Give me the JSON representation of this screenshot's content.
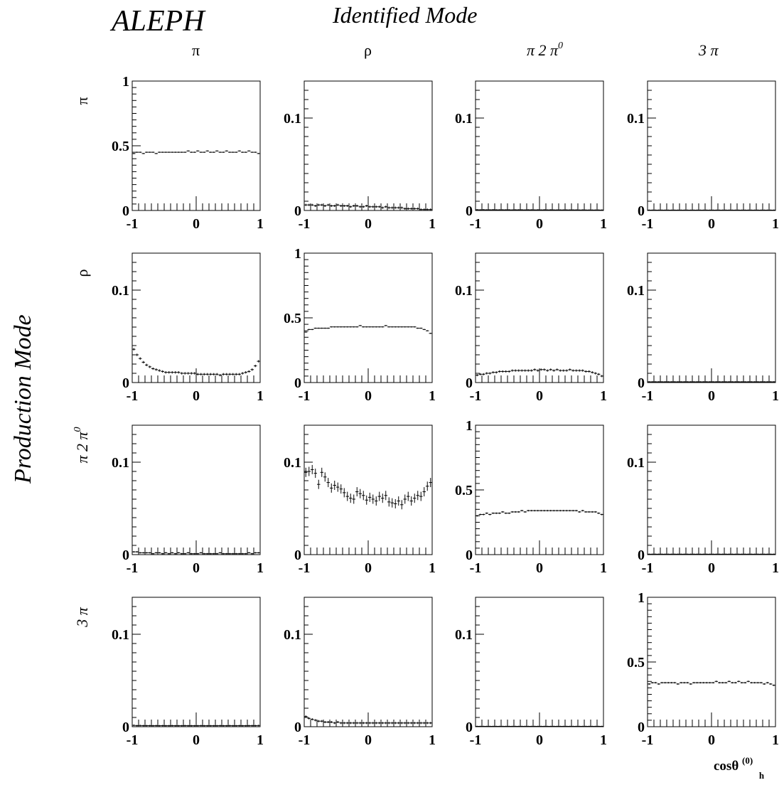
{
  "figure": {
    "experiment": "ALEPH",
    "identified_title": "Identified Mode",
    "production_title": "Production Mode",
    "x_axis_label_main": "cosθ",
    "x_axis_label_sup": "(0)",
    "x_axis_label_sub": "h"
  },
  "modes": [
    {
      "id": "pi",
      "base": "π",
      "sup": ""
    },
    {
      "id": "rho",
      "base": "ρ",
      "sup": ""
    },
    {
      "id": "pi2pi0",
      "base": "π 2 π",
      "sup": "0"
    },
    {
      "id": "3pi",
      "base": "3 π",
      "sup": ""
    }
  ],
  "chart_data": {
    "type": "scatter",
    "description_of_axes": "4x4 grid; rows = production mode, columns = identified mode",
    "x": [
      -0.975,
      -0.925,
      -0.875,
      -0.825,
      -0.775,
      -0.725,
      -0.675,
      -0.625,
      -0.575,
      -0.525,
      -0.475,
      -0.425,
      -0.375,
      -0.325,
      -0.275,
      -0.225,
      -0.175,
      -0.125,
      -0.075,
      -0.025,
      0.025,
      0.075,
      0.125,
      0.175,
      0.225,
      0.275,
      0.325,
      0.375,
      0.425,
      0.475,
      0.525,
      0.575,
      0.625,
      0.675,
      0.725,
      0.775,
      0.825,
      0.875,
      0.925,
      0.975
    ],
    "xlim": [
      -1,
      1
    ],
    "x_ticks": [
      "-1",
      "0",
      "1"
    ],
    "panels": [
      {
        "row": "π",
        "col": "π",
        "ylim": [
          0,
          1
        ],
        "y_ticks": [
          "0",
          "0.5",
          "1"
        ],
        "error": 0.004,
        "y": [
          0.44,
          0.45,
          0.45,
          0.44,
          0.45,
          0.45,
          0.45,
          0.44,
          0.45,
          0.45,
          0.45,
          0.45,
          0.45,
          0.45,
          0.45,
          0.45,
          0.45,
          0.46,
          0.45,
          0.45,
          0.46,
          0.45,
          0.45,
          0.46,
          0.45,
          0.45,
          0.46,
          0.45,
          0.45,
          0.46,
          0.45,
          0.45,
          0.45,
          0.46,
          0.45,
          0.45,
          0.46,
          0.45,
          0.45,
          0.44
        ]
      },
      {
        "row": "π",
        "col": "ρ",
        "ylim": [
          0,
          0.14
        ],
        "y_ticks": [
          "0",
          "0.1"
        ],
        "error": 0.0012,
        "y": [
          0.006,
          0.006,
          0.006,
          0.005,
          0.006,
          0.006,
          0.005,
          0.006,
          0.005,
          0.005,
          0.006,
          0.005,
          0.005,
          0.005,
          0.004,
          0.005,
          0.005,
          0.004,
          0.004,
          0.005,
          0.004,
          0.004,
          0.004,
          0.004,
          0.003,
          0.004,
          0.003,
          0.003,
          0.003,
          0.003,
          0.003,
          0.002,
          0.002,
          0.002,
          0.002,
          0.002,
          0.001,
          0.001,
          0.001,
          0.001
        ]
      },
      {
        "row": "π",
        "col": "π 2 π0",
        "ylim": [
          0,
          0.14
        ],
        "y_ticks": [
          "0",
          "0.1"
        ],
        "error": 0.0004,
        "y": [
          0.0008,
          0.0007,
          0.0008,
          0.0007,
          0.0007,
          0.0008,
          0.0007,
          0.0007,
          0.0007,
          0.0007,
          0.0007,
          0.0006,
          0.0007,
          0.0007,
          0.0007,
          0.0006,
          0.0007,
          0.0007,
          0.0006,
          0.0007,
          0.0006,
          0.0007,
          0.0006,
          0.0007,
          0.0006,
          0.0006,
          0.0006,
          0.0006,
          0.0006,
          0.0006,
          0.0006,
          0.0006,
          0.0005,
          0.0006,
          0.0005,
          0.0005,
          0.0005,
          0.0005,
          0.0005,
          0.0005
        ]
      },
      {
        "row": "π",
        "col": "3 π",
        "ylim": [
          0,
          0.14
        ],
        "y_ticks": [
          "0",
          "0.1"
        ],
        "error": 0.0002,
        "y": [
          0.0004,
          0.0004,
          0.0004,
          0.0004,
          0.0004,
          0.0004,
          0.0004,
          0.0004,
          0.0004,
          0.0004,
          0.0004,
          0.0004,
          0.0004,
          0.0004,
          0.0004,
          0.0004,
          0.0004,
          0.0004,
          0.0004,
          0.0004,
          0.0004,
          0.0004,
          0.0004,
          0.0004,
          0.0004,
          0.0004,
          0.0004,
          0.0004,
          0.0004,
          0.0004,
          0.0004,
          0.0004,
          0.0004,
          0.0004,
          0.0004,
          0.0004,
          0.0004,
          0.0004,
          0.0004,
          0.0004
        ]
      },
      {
        "row": "ρ",
        "col": "π",
        "ylim": [
          0,
          0.14
        ],
        "y_ticks": [
          "0",
          "0.1"
        ],
        "error": 0.0013,
        "y": [
          0.036,
          0.03,
          0.026,
          0.022,
          0.019,
          0.017,
          0.015,
          0.014,
          0.013,
          0.012,
          0.011,
          0.011,
          0.011,
          0.011,
          0.011,
          0.01,
          0.01,
          0.01,
          0.01,
          0.01,
          0.009,
          0.009,
          0.009,
          0.009,
          0.009,
          0.009,
          0.009,
          0.008,
          0.009,
          0.009,
          0.009,
          0.009,
          0.009,
          0.009,
          0.01,
          0.011,
          0.012,
          0.014,
          0.018,
          0.023
        ]
      },
      {
        "row": "ρ",
        "col": "ρ",
        "ylim": [
          0,
          1
        ],
        "y_ticks": [
          "0",
          "0.5",
          "1"
        ],
        "error": 0.004,
        "y": [
          0.39,
          0.41,
          0.41,
          0.42,
          0.42,
          0.42,
          0.42,
          0.42,
          0.43,
          0.43,
          0.43,
          0.43,
          0.43,
          0.43,
          0.43,
          0.43,
          0.43,
          0.44,
          0.43,
          0.43,
          0.43,
          0.43,
          0.43,
          0.43,
          0.43,
          0.44,
          0.43,
          0.43,
          0.43,
          0.43,
          0.43,
          0.43,
          0.43,
          0.43,
          0.43,
          0.42,
          0.42,
          0.41,
          0.4,
          0.38
        ]
      },
      {
        "row": "ρ",
        "col": "π 2 π0",
        "ylim": [
          0,
          0.14
        ],
        "y_ticks": [
          "0",
          "0.1"
        ],
        "error": 0.0012,
        "y": [
          0.008,
          0.009,
          0.009,
          0.01,
          0.01,
          0.011,
          0.011,
          0.012,
          0.012,
          0.012,
          0.012,
          0.013,
          0.013,
          0.013,
          0.013,
          0.013,
          0.013,
          0.013,
          0.014,
          0.013,
          0.014,
          0.014,
          0.013,
          0.014,
          0.013,
          0.014,
          0.013,
          0.013,
          0.013,
          0.014,
          0.013,
          0.013,
          0.013,
          0.013,
          0.012,
          0.012,
          0.011,
          0.01,
          0.009,
          0.007
        ]
      },
      {
        "row": "ρ",
        "col": "3 π",
        "ylim": [
          0,
          0.14
        ],
        "y_ticks": [
          "0",
          "0.1"
        ],
        "error": 0.0002,
        "y": [
          0.0008,
          0.0008,
          0.0008,
          0.0008,
          0.0008,
          0.0008,
          0.0008,
          0.0008,
          0.0008,
          0.0008,
          0.0008,
          0.0008,
          0.0008,
          0.0008,
          0.0008,
          0.0008,
          0.0008,
          0.0008,
          0.0008,
          0.0008,
          0.0008,
          0.0008,
          0.0008,
          0.0008,
          0.0008,
          0.0008,
          0.0008,
          0.0008,
          0.0008,
          0.0008,
          0.0008,
          0.0008,
          0.0008,
          0.0008,
          0.0008,
          0.0008,
          0.0008,
          0.0008,
          0.0008,
          0.0008
        ]
      },
      {
        "row": "π 2 π0",
        "col": "π",
        "ylim": [
          0,
          0.14
        ],
        "y_ticks": [
          "0",
          "0.1"
        ],
        "error": 0.0008,
        "y": [
          0.003,
          0.003,
          0.002,
          0.002,
          0.002,
          0.002,
          0.001,
          0.002,
          0.002,
          0.001,
          0.002,
          0.001,
          0.002,
          0.001,
          0.002,
          0.001,
          0.001,
          0.002,
          0.001,
          0.001,
          0.001,
          0.002,
          0.001,
          0.001,
          0.001,
          0.001,
          0.001,
          0.002,
          0.001,
          0.001,
          0.001,
          0.001,
          0.001,
          0.001,
          0.001,
          0.001,
          0.002,
          0.001,
          0.002,
          0.002
        ]
      },
      {
        "row": "π 2 π0",
        "col": "ρ",
        "ylim": [
          0,
          0.14
        ],
        "y_ticks": [
          "0",
          "0.1"
        ],
        "error": 0.005,
        "y": [
          0.089,
          0.09,
          0.092,
          0.088,
          0.076,
          0.089,
          0.084,
          0.078,
          0.072,
          0.075,
          0.073,
          0.071,
          0.067,
          0.063,
          0.061,
          0.06,
          0.068,
          0.066,
          0.064,
          0.059,
          0.062,
          0.06,
          0.058,
          0.063,
          0.061,
          0.064,
          0.057,
          0.056,
          0.055,
          0.058,
          0.054,
          0.06,
          0.063,
          0.058,
          0.061,
          0.064,
          0.063,
          0.068,
          0.074,
          0.078
        ]
      },
      {
        "row": "π 2 π0",
        "col": "π 2 π0",
        "ylim": [
          0,
          1
        ],
        "y_ticks": [
          "0",
          "0.5",
          "1"
        ],
        "error": 0.006,
        "y": [
          0.3,
          0.31,
          0.31,
          0.32,
          0.31,
          0.32,
          0.32,
          0.32,
          0.33,
          0.32,
          0.32,
          0.33,
          0.33,
          0.33,
          0.34,
          0.33,
          0.34,
          0.34,
          0.34,
          0.34,
          0.34,
          0.34,
          0.34,
          0.34,
          0.34,
          0.34,
          0.34,
          0.34,
          0.34,
          0.34,
          0.34,
          0.34,
          0.33,
          0.34,
          0.33,
          0.33,
          0.33,
          0.33,
          0.32,
          0.31
        ]
      },
      {
        "row": "π 2 π0",
        "col": "3 π",
        "ylim": [
          0,
          0.14
        ],
        "y_ticks": [
          "0",
          "0.1"
        ],
        "error": 0.0002,
        "y": [
          0.0005,
          0.0005,
          0.0005,
          0.0005,
          0.0005,
          0.0005,
          0.0005,
          0.0005,
          0.0005,
          0.0005,
          0.0005,
          0.0005,
          0.0005,
          0.0005,
          0.0005,
          0.0005,
          0.0005,
          0.0005,
          0.0005,
          0.0005,
          0.0005,
          0.0005,
          0.0005,
          0.0005,
          0.0005,
          0.0005,
          0.0005,
          0.0005,
          0.0005,
          0.0005,
          0.0005,
          0.0005,
          0.0005,
          0.0005,
          0.0005,
          0.0005,
          0.0005,
          0.0005,
          0.0005,
          0.0005
        ]
      },
      {
        "row": "3 π",
        "col": "π",
        "ylim": [
          0,
          0.14
        ],
        "y_ticks": [
          "0",
          "0.1"
        ],
        "error": 0.0008,
        "y": [
          0.0015,
          0.0012,
          0.0013,
          0.0012,
          0.0012,
          0.0012,
          0.0011,
          0.0012,
          0.0011,
          0.0012,
          0.0011,
          0.0011,
          0.0012,
          0.0011,
          0.0011,
          0.0011,
          0.0012,
          0.0011,
          0.0011,
          0.0011,
          0.0011,
          0.0012,
          0.0011,
          0.0011,
          0.0011,
          0.0011,
          0.0011,
          0.0012,
          0.0011,
          0.0011,
          0.0012,
          0.0011,
          0.0011,
          0.0012,
          0.0011,
          0.0011,
          0.0012,
          0.0012,
          0.0012,
          0.0013
        ]
      },
      {
        "row": "3 π",
        "col": "ρ",
        "ylim": [
          0,
          0.14
        ],
        "y_ticks": [
          "0",
          "0.1"
        ],
        "error": 0.0012,
        "y": [
          0.011,
          0.009,
          0.008,
          0.007,
          0.006,
          0.006,
          0.005,
          0.005,
          0.005,
          0.004,
          0.005,
          0.004,
          0.004,
          0.004,
          0.004,
          0.004,
          0.004,
          0.004,
          0.004,
          0.004,
          0.004,
          0.004,
          0.004,
          0.004,
          0.004,
          0.004,
          0.004,
          0.004,
          0.004,
          0.004,
          0.004,
          0.004,
          0.004,
          0.004,
          0.004,
          0.004,
          0.004,
          0.004,
          0.004,
          0.004
        ]
      },
      {
        "row": "3 π",
        "col": "π 2 π0",
        "ylim": [
          0,
          0.14
        ],
        "y_ticks": [
          "0",
          "0.1"
        ],
        "error": 0.0003,
        "y": [
          0.0004,
          0.0004,
          0.0004,
          0.0004,
          0.0004,
          0.0004,
          0.0004,
          0.0004,
          0.0004,
          0.0004,
          0.0004,
          0.0004,
          0.0004,
          0.0004,
          0.0004,
          0.0004,
          0.0004,
          0.0004,
          0.0004,
          0.0004,
          0.0004,
          0.0004,
          0.0004,
          0.0004,
          0.0004,
          0.0004,
          0.0004,
          0.0004,
          0.0004,
          0.0004,
          0.0004,
          0.0004,
          0.0004,
          0.0004,
          0.0004,
          0.0004,
          0.0004,
          0.0004,
          0.0004,
          0.0004
        ]
      },
      {
        "row": "3 π",
        "col": "3 π",
        "ylim": [
          0,
          1
        ],
        "y_ticks": [
          "0",
          "0.5",
          "1"
        ],
        "error": 0.006,
        "y": [
          0.33,
          0.34,
          0.34,
          0.33,
          0.34,
          0.34,
          0.34,
          0.34,
          0.34,
          0.33,
          0.34,
          0.34,
          0.34,
          0.33,
          0.34,
          0.34,
          0.34,
          0.34,
          0.34,
          0.34,
          0.34,
          0.35,
          0.34,
          0.34,
          0.34,
          0.35,
          0.34,
          0.34,
          0.35,
          0.34,
          0.34,
          0.35,
          0.34,
          0.34,
          0.34,
          0.34,
          0.33,
          0.34,
          0.33,
          0.32
        ]
      }
    ]
  }
}
